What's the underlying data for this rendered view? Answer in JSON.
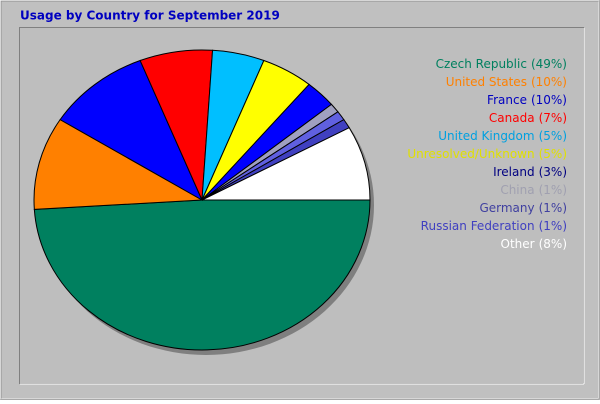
{
  "chart_data": {
    "type": "pie",
    "title": "Usage by Country for September 2019",
    "categories": [
      "Czech Republic",
      "United States",
      "France",
      "Canada",
      "United Kingdom",
      "Unresolved/Unknown",
      "Ireland",
      "China",
      "Germany",
      "Russian Federation",
      "Other"
    ],
    "values": [
      49,
      10,
      10,
      7,
      5,
      5,
      3,
      1,
      1,
      1,
      8
    ],
    "value_labels": [
      "(49%)",
      "(10%)",
      "(10%)",
      "(7%)",
      "(5%)",
      "(5%)",
      "(3%)",
      "(1%)",
      "(1%)",
      "(1%)",
      "(8%)"
    ],
    "colors": [
      "#00805f",
      "#ff8000",
      "#0000ff",
      "#ff0000",
      "#00bfff",
      "#ffff00",
      "#0000ff",
      "#a0a0c0",
      "#6060e0",
      "#4040c0",
      "#ffffff"
    ],
    "legend_colors": [
      "#00805f",
      "#ff8000",
      "#0000c0",
      "#ff0000",
      "#00a0e0",
      "#e0e000",
      "#000080",
      "#a0a0b0",
      "#4040a0",
      "#4040c0",
      "#ffffff"
    ],
    "legend": "right"
  }
}
